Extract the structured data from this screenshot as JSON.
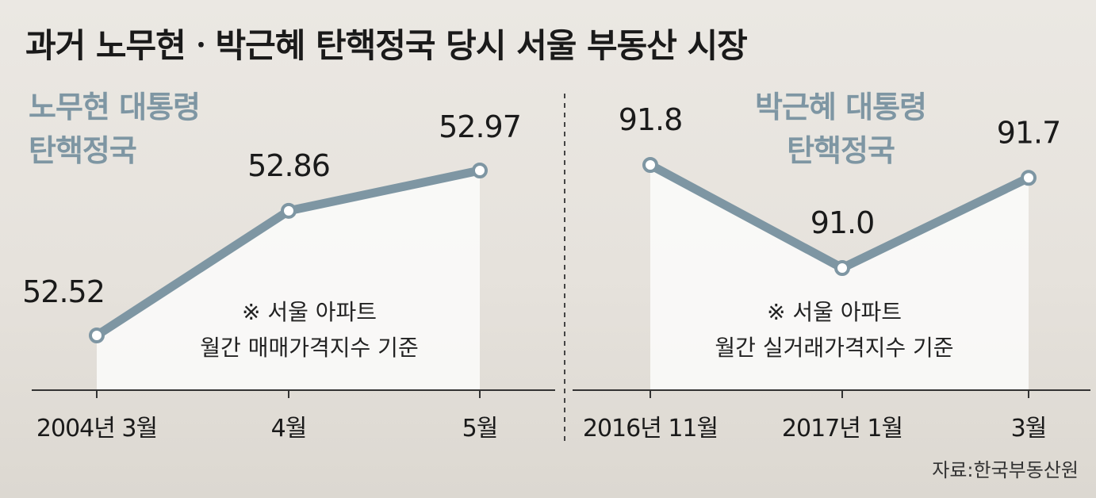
{
  "title": "과거 노무현ㆍ박근혜 탄핵정국 당시 서울 부동산 시장",
  "source": "자료:한국부동산원",
  "colors": {
    "line": "#7e96a3",
    "panel_title": "#7e96a3",
    "text": "#1a1a1a",
    "area": "#fbfbfa",
    "axis": "#333333"
  },
  "chart_data": [
    {
      "type": "area",
      "panel_title": [
        "노무현 대통령",
        "탄핵정국"
      ],
      "categories": [
        "2004년 3월",
        "4월",
        "5월"
      ],
      "values": [
        52.52,
        52.86,
        52.97
      ],
      "value_labels": [
        "52.52",
        "52.86",
        "52.97"
      ],
      "note": [
        "※ 서울 아파트",
        "월간 매매가격지수 기준"
      ]
    },
    {
      "type": "area",
      "panel_title": [
        "박근혜 대통령",
        "탄핵정국"
      ],
      "categories": [
        "2016년 11월",
        "2017년 1월",
        "3월"
      ],
      "values": [
        91.8,
        91.0,
        91.7
      ],
      "value_labels": [
        "91.8",
        "91.0",
        "91.7"
      ],
      "note": [
        "※ 서울 아파트",
        "월간 실거래가격지수 기준"
      ]
    }
  ]
}
